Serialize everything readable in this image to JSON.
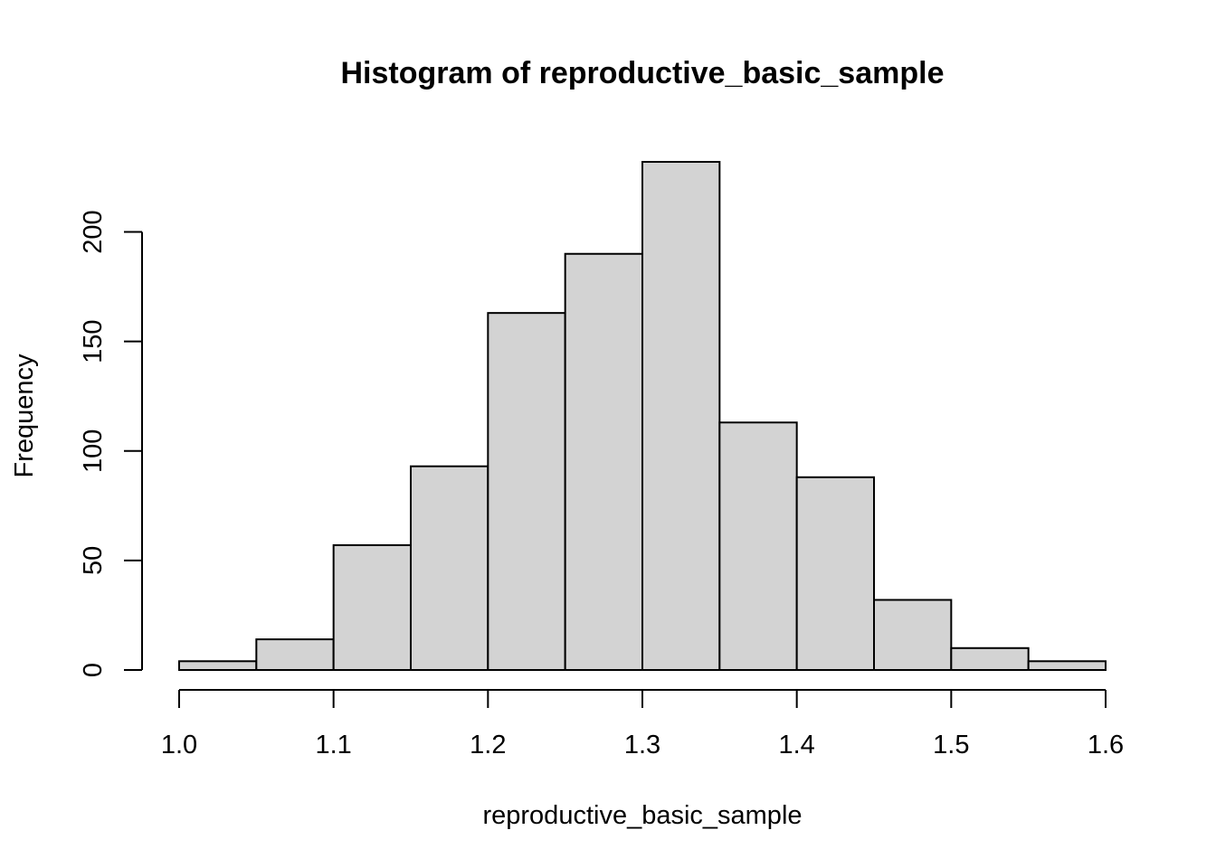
{
  "chart_data": {
    "type": "bar",
    "title": "Histogram of reproductive_basic_sample",
    "xlabel": "reproductive_basic_sample",
    "ylabel": "Frequency",
    "bins": [
      {
        "start": 1.0,
        "end": 1.05,
        "count": 4
      },
      {
        "start": 1.05,
        "end": 1.1,
        "count": 14
      },
      {
        "start": 1.1,
        "end": 1.15,
        "count": 57
      },
      {
        "start": 1.15,
        "end": 1.2,
        "count": 93
      },
      {
        "start": 1.2,
        "end": 1.25,
        "count": 163
      },
      {
        "start": 1.25,
        "end": 1.3,
        "count": 190
      },
      {
        "start": 1.3,
        "end": 1.35,
        "count": 232
      },
      {
        "start": 1.35,
        "end": 1.4,
        "count": 113
      },
      {
        "start": 1.4,
        "end": 1.45,
        "count": 88
      },
      {
        "start": 1.45,
        "end": 1.5,
        "count": 32
      },
      {
        "start": 1.5,
        "end": 1.55,
        "count": 10
      },
      {
        "start": 1.55,
        "end": 1.6,
        "count": 4
      }
    ],
    "xlim": [
      1.0,
      1.6
    ],
    "ylim": [
      0,
      232
    ],
    "x_ticks": [
      "1.0",
      "1.1",
      "1.2",
      "1.3",
      "1.4",
      "1.5",
      "1.6"
    ],
    "y_ticks": [
      "0",
      "50",
      "100",
      "150",
      "200"
    ],
    "grid": false,
    "colors": {
      "bar_fill": "#d3d3d3",
      "bar_stroke": "#000000"
    }
  }
}
